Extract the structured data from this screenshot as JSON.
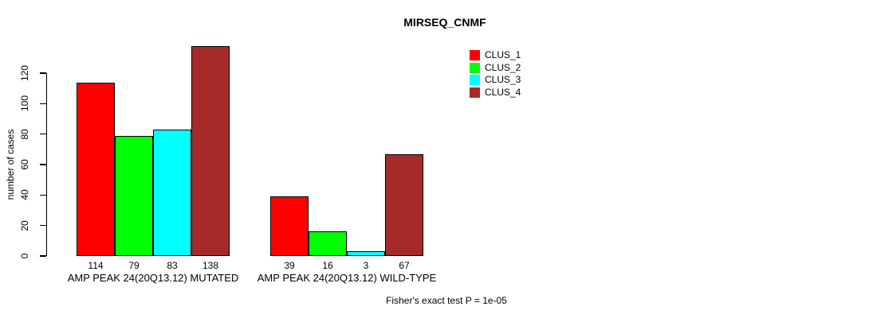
{
  "chart_data": {
    "type": "bar",
    "title": "MIRSEQ_CNMF",
    "ylabel": "number of cases",
    "xlabel": "",
    "ylim": [
      0,
      140
    ],
    "yticks": [
      0,
      20,
      40,
      60,
      80,
      100,
      120
    ],
    "grid": false,
    "legend_position": "top-right",
    "categories": [
      "AMP PEAK 24(20Q13.12) MUTATED",
      "AMP PEAK 24(20Q13.12) WILD-TYPE"
    ],
    "series": [
      {
        "name": "CLUS_1",
        "color": "#ff0000",
        "values": [
          114,
          39
        ]
      },
      {
        "name": "CLUS_2",
        "color": "#00ff00",
        "values": [
          79,
          16
        ]
      },
      {
        "name": "CLUS_3",
        "color": "#00ffff",
        "values": [
          83,
          3
        ]
      },
      {
        "name": "CLUS_4",
        "color": "#a52a2a",
        "values": [
          138,
          67
        ]
      }
    ],
    "bar_value_labels_shown": true,
    "annotation": "Fisher's exact test P = 1e-05"
  }
}
